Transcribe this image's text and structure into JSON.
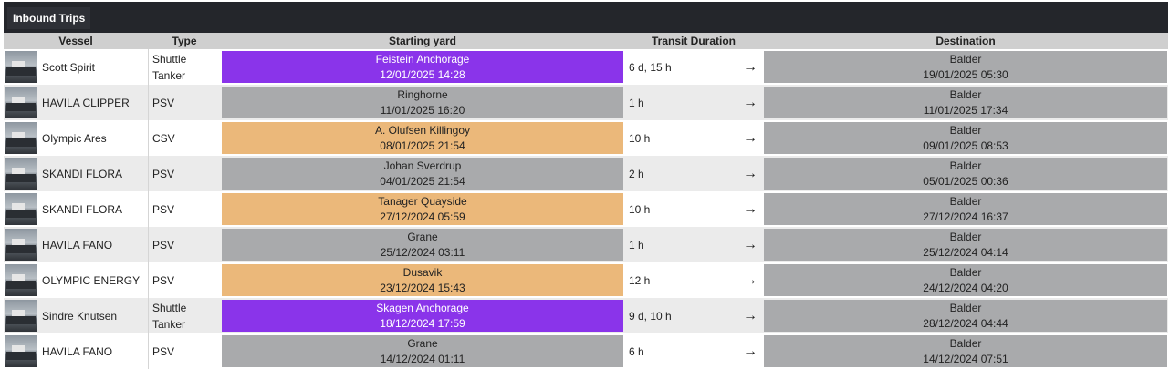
{
  "panel": {
    "tab_label": "Inbound Trips"
  },
  "columns": {
    "vessel": "Vessel",
    "type": "Type",
    "start": "Starting yard",
    "duration": "Transit Duration",
    "dest": "Destination"
  },
  "arrow_glyph": "→",
  "colors": {
    "tanker_yard": "#8a34ea",
    "quayside_yard": "#ebb87a",
    "field_yard": "#a9aaac"
  },
  "trips": [
    {
      "vessel": "Scott Spirit",
      "type_line1": "Shuttle",
      "type_line2": "Tanker",
      "start_name": "Feistein Anchorage",
      "start_time": "12/01/2025 14:28",
      "start_style": "purple",
      "duration": "6 d, 15 h",
      "dest_name": "Balder",
      "dest_time": "19/01/2025 05:30",
      "thumb_icon": "tanker-photo-icon"
    },
    {
      "vessel": "HAVILA CLIPPER",
      "type_line1": "PSV",
      "type_line2": "",
      "start_name": "Ringhorne",
      "start_time": "11/01/2025 16:20",
      "start_style": "grey",
      "duration": "1 h",
      "dest_name": "Balder",
      "dest_time": "11/01/2025 17:34",
      "thumb_icon": "vessel-photo-icon"
    },
    {
      "vessel": "Olympic Ares",
      "type_line1": "CSV",
      "type_line2": "",
      "start_name": "A. Olufsen Killingoy",
      "start_time": "08/01/2025 21:54",
      "start_style": "orange",
      "duration": "10 h",
      "dest_name": "Balder",
      "dest_time": "09/01/2025 08:53",
      "thumb_icon": "vessel-photo-icon"
    },
    {
      "vessel": "SKANDI FLORA",
      "type_line1": "PSV",
      "type_line2": "",
      "start_name": "Johan Sverdrup",
      "start_time": "04/01/2025 21:54",
      "start_style": "grey",
      "duration": "2 h",
      "dest_name": "Balder",
      "dest_time": "05/01/2025 00:36",
      "thumb_icon": "vessel-photo-icon"
    },
    {
      "vessel": "SKANDI FLORA",
      "type_line1": "PSV",
      "type_line2": "",
      "start_name": "Tanager Quayside",
      "start_time": "27/12/2024 05:59",
      "start_style": "orange",
      "duration": "10 h",
      "dest_name": "Balder",
      "dest_time": "27/12/2024 16:37",
      "thumb_icon": "vessel-photo-icon"
    },
    {
      "vessel": "HAVILA FANO",
      "type_line1": "PSV",
      "type_line2": "",
      "start_name": "Grane",
      "start_time": "25/12/2024 03:11",
      "start_style": "grey",
      "duration": "1 h",
      "dest_name": "Balder",
      "dest_time": "25/12/2024 04:14",
      "thumb_icon": "vessel-photo-icon"
    },
    {
      "vessel": "OLYMPIC ENERGY",
      "type_line1": "PSV",
      "type_line2": "",
      "start_name": "Dusavik",
      "start_time": "23/12/2024 15:43",
      "start_style": "orange",
      "duration": "12 h",
      "dest_name": "Balder",
      "dest_time": "24/12/2024 04:20",
      "thumb_icon": "vessel-photo-icon"
    },
    {
      "vessel": "Sindre Knutsen",
      "type_line1": "Shuttle",
      "type_line2": "Tanker",
      "start_name": "Skagen Anchorage",
      "start_time": "18/12/2024 17:59",
      "start_style": "purple",
      "duration": "9 d, 10 h",
      "dest_name": "Balder",
      "dest_time": "28/12/2024 04:44",
      "thumb_icon": "tanker-photo-icon"
    },
    {
      "vessel": "HAVILA FANO",
      "type_line1": "PSV",
      "type_line2": "",
      "start_name": "Grane",
      "start_time": "14/12/2024 01:11",
      "start_style": "grey",
      "duration": "6 h",
      "dest_name": "Balder",
      "dest_time": "14/12/2024 07:51",
      "thumb_icon": "vessel-photo-icon"
    }
  ]
}
